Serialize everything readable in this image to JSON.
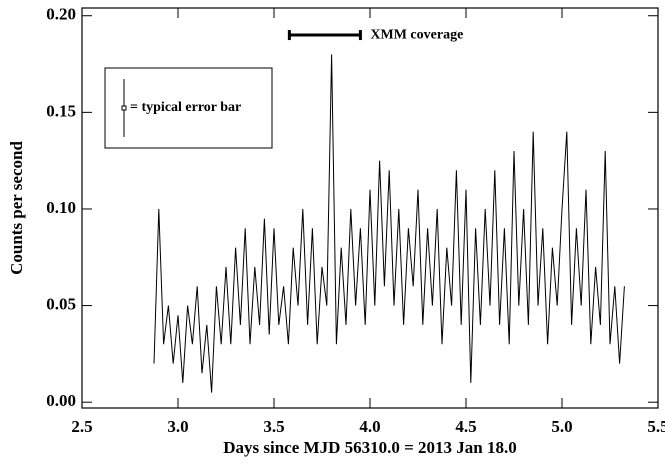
{
  "chart_data": {
    "type": "line",
    "xlabel": "Days since MJD 56310.0 = 2013 Jan 18.0",
    "ylabel": "Counts per second",
    "x": [
      2.875,
      2.9,
      2.925,
      2.95,
      2.975,
      3.0,
      3.025,
      3.05,
      3.075,
      3.1,
      3.125,
      3.15,
      3.175,
      3.2,
      3.225,
      3.25,
      3.275,
      3.3,
      3.325,
      3.35,
      3.375,
      3.4,
      3.425,
      3.45,
      3.475,
      3.5,
      3.525,
      3.55,
      3.575,
      3.6,
      3.625,
      3.65,
      3.675,
      3.7,
      3.725,
      3.75,
      3.775,
      3.8,
      3.825,
      3.85,
      3.875,
      3.9,
      3.925,
      3.95,
      3.975,
      4.0,
      4.025,
      4.05,
      4.075,
      4.1,
      4.125,
      4.15,
      4.175,
      4.2,
      4.225,
      4.25,
      4.275,
      4.3,
      4.325,
      4.35,
      4.375,
      4.4,
      4.425,
      4.45,
      4.475,
      4.5,
      4.525,
      4.55,
      4.575,
      4.6,
      4.625,
      4.65,
      4.675,
      4.7,
      4.725,
      4.75,
      4.775,
      4.8,
      4.825,
      4.85,
      4.875,
      4.9,
      4.925,
      4.95,
      4.975,
      5.0,
      5.025,
      5.05,
      5.075,
      5.1,
      5.125,
      5.15,
      5.175,
      5.2,
      5.225,
      5.25,
      5.275,
      5.3,
      5.325
    ],
    "values": [
      0.02,
      0.1,
      0.03,
      0.05,
      0.02,
      0.045,
      0.01,
      0.05,
      0.03,
      0.06,
      0.015,
      0.04,
      0.005,
      0.06,
      0.03,
      0.07,
      0.03,
      0.08,
      0.04,
      0.09,
      0.03,
      0.07,
      0.04,
      0.095,
      0.035,
      0.09,
      0.04,
      0.06,
      0.03,
      0.08,
      0.05,
      0.1,
      0.04,
      0.09,
      0.03,
      0.07,
      0.05,
      0.18,
      0.03,
      0.08,
      0.04,
      0.1,
      0.05,
      0.09,
      0.04,
      0.11,
      0.05,
      0.125,
      0.06,
      0.12,
      0.05,
      0.1,
      0.04,
      0.09,
      0.06,
      0.11,
      0.04,
      0.09,
      0.05,
      0.1,
      0.03,
      0.08,
      0.05,
      0.12,
      0.04,
      0.11,
      0.01,
      0.09,
      0.04,
      0.1,
      0.05,
      0.12,
      0.04,
      0.09,
      0.03,
      0.13,
      0.05,
      0.1,
      0.04,
      0.14,
      0.05,
      0.09,
      0.03,
      0.08,
      0.05,
      0.1,
      0.14,
      0.04,
      0.09,
      0.05,
      0.11,
      0.03,
      0.07,
      0.04,
      0.13,
      0.03,
      0.06,
      0.02,
      0.06
    ],
    "color": "#000000",
    "xlim": [
      2.5,
      5.5
    ],
    "ylim": [
      -0.003,
      0.204
    ],
    "xticks": [
      2.5,
      {
        "value": 3,
        "label": "3.0"
      },
      3.5,
      {
        "value": 4,
        "label": "4.0"
      },
      4.5,
      {
        "value": 5,
        "label": "5.0"
      },
      5.5
    ],
    "yticks": [
      {
        "value": 0,
        "label": "0.00"
      },
      0.05,
      {
        "value": 0.1,
        "label": "0.10"
      },
      0.15,
      {
        "value": 0.2,
        "label": "0.20"
      }
    ],
    "annotations": [
      {
        "text": "XMM coverage",
        "x": [
          3.58,
          3.95
        ],
        "y": 0.19
      },
      {
        "text": "= typical error bar",
        "error": 0.015
      }
    ]
  }
}
